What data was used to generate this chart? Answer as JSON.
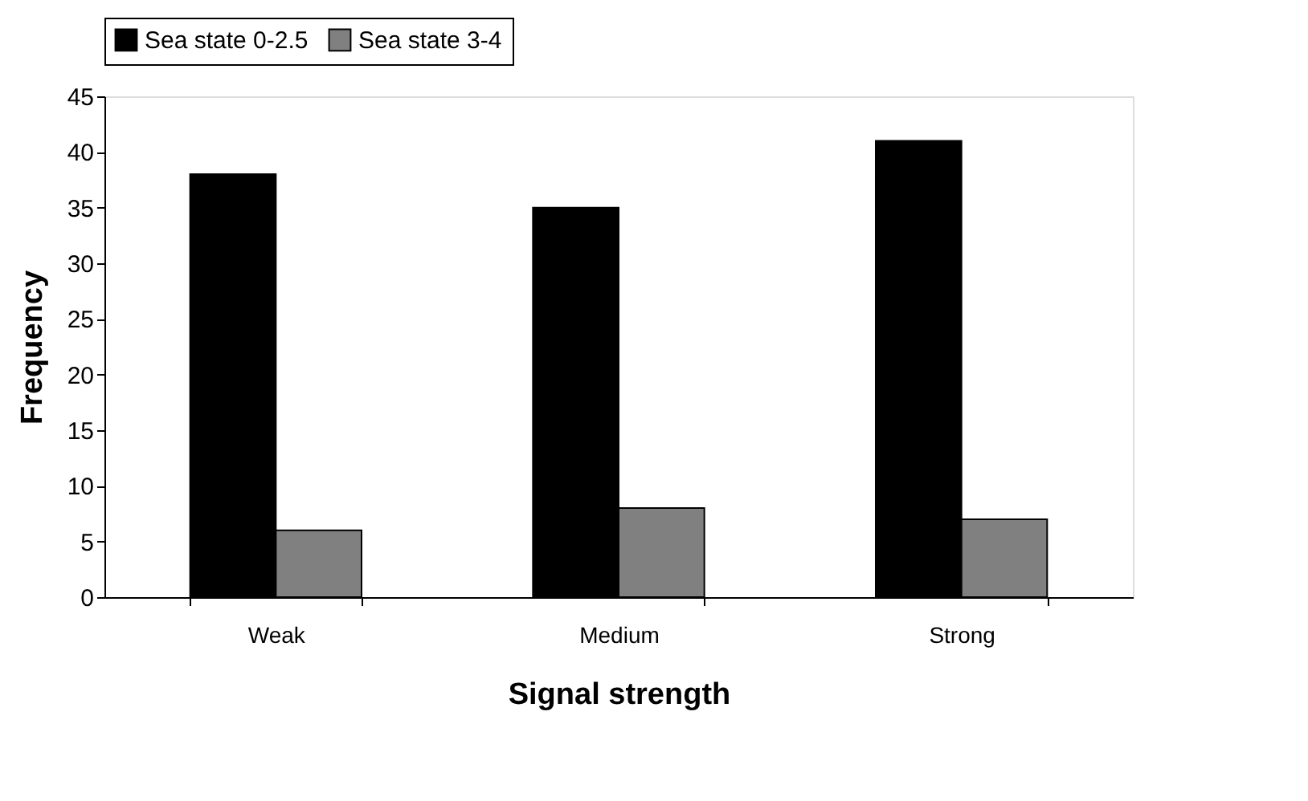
{
  "chart_data": {
    "type": "bar",
    "xlabel": "Signal strength",
    "ylabel": "Frequency",
    "categories": [
      "Weak",
      "Medium",
      "Strong"
    ],
    "series": [
      {
        "name": "Sea state 0-2.5",
        "color": "#000000",
        "values": [
          38,
          35,
          41
        ]
      },
      {
        "name": "Sea state 3-4",
        "color": "#808080",
        "values": [
          6,
          8,
          7
        ]
      }
    ],
    "ylim": [
      0,
      45
    ],
    "yticks": [
      0,
      5,
      10,
      15,
      20,
      25,
      30,
      35,
      40,
      45
    ],
    "grid": false,
    "legend": "top"
  }
}
